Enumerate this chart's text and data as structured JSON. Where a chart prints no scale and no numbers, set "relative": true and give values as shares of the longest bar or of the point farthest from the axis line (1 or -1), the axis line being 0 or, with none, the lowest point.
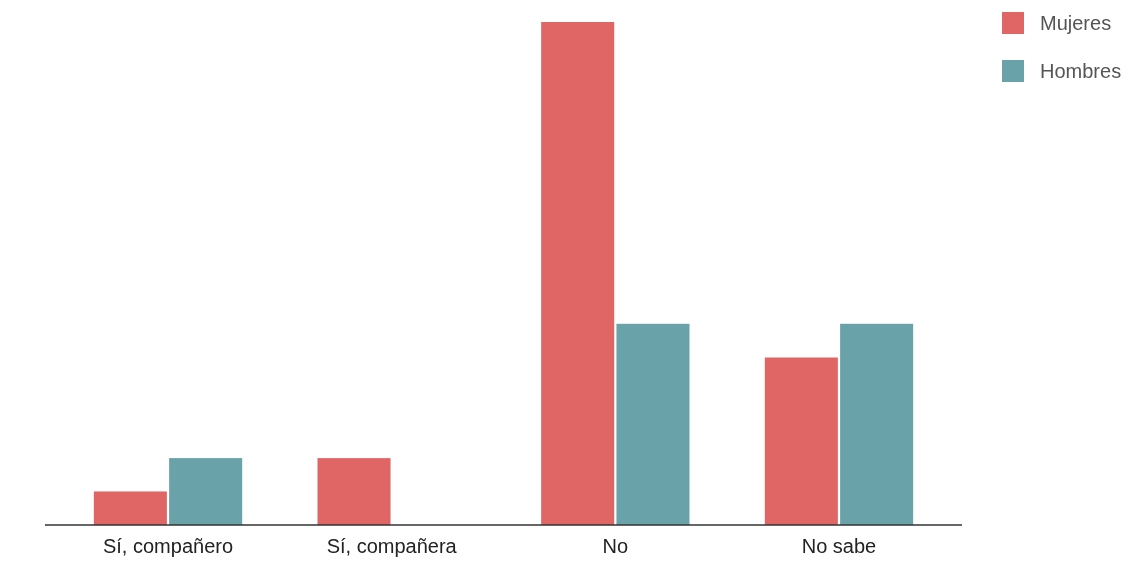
{
  "chart_data": {
    "type": "bar",
    "relative": true,
    "categories": [
      "Sí, compañero",
      "Sí, compañera",
      "No",
      "No sabe"
    ],
    "series": [
      {
        "name": "Mujeres",
        "color": "#e06666",
        "values": [
          0.0667,
          0.133,
          1,
          0.333
        ]
      },
      {
        "name": "Hombres",
        "color": "#6aa2a9",
        "values": [
          0.133,
          0,
          0.4,
          0.4
        ]
      }
    ],
    "legend": "top right"
  }
}
